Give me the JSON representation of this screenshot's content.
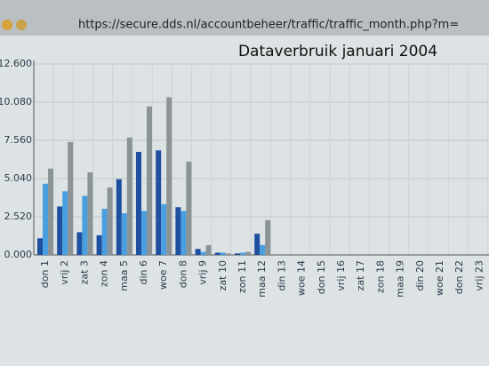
{
  "window": {
    "url": "https://secure.dds.nl/accountbeheer/traffic/traffic_month.php?m="
  },
  "chart_data": {
    "type": "bar",
    "title": "Dataverbruik januari 2004",
    "categories": [
      "don 1",
      "vrij 2",
      "zat 3",
      "zon 4",
      "maa 5",
      "din 6",
      "woe 7",
      "don 8",
      "vrij 9",
      "zat 10",
      "zon 11",
      "maa 12",
      "din 13",
      "woe 14",
      "don 15",
      "vrij 16",
      "zat 17",
      "zon 18",
      "maa 19",
      "din 20",
      "woe 21",
      "don 22",
      "vrij 23"
    ],
    "series": [
      {
        "color": "#1f4fa0",
        "values": [
          1.1,
          3.2,
          1.5,
          1.3,
          5.0,
          6.8,
          6.9,
          3.15,
          0.4,
          0.15,
          0.1,
          1.4,
          0,
          0,
          0,
          0,
          0,
          0,
          0,
          0,
          0,
          0,
          0
        ]
      },
      {
        "color": "#4a9fe0",
        "values": [
          4.7,
          4.2,
          3.9,
          3.05,
          2.75,
          2.9,
          3.35,
          2.9,
          0.2,
          0.15,
          0.15,
          0.65,
          0,
          0,
          0,
          0,
          0,
          0,
          0,
          0,
          0,
          0,
          0
        ]
      },
      {
        "color": "#8c9396",
        "values": [
          5.7,
          7.45,
          5.45,
          4.45,
          7.75,
          9.8,
          10.4,
          6.15,
          0.65,
          0.1,
          0.2,
          2.3,
          0,
          0,
          0,
          0,
          0,
          0,
          0,
          0,
          0,
          0,
          0
        ]
      }
    ],
    "ylim": [
      0,
      12.6
    ],
    "yticks": [
      {
        "value": 0,
        "label": "0.000"
      },
      {
        "value": 2.52,
        "label": "2.520"
      },
      {
        "value": 5.04,
        "label": "5.040"
      },
      {
        "value": 7.56,
        "label": "7.560"
      },
      {
        "value": 10.08,
        "label": "10.080"
      },
      {
        "value": 12.6,
        "label": "12.600"
      }
    ],
    "grid": true
  }
}
